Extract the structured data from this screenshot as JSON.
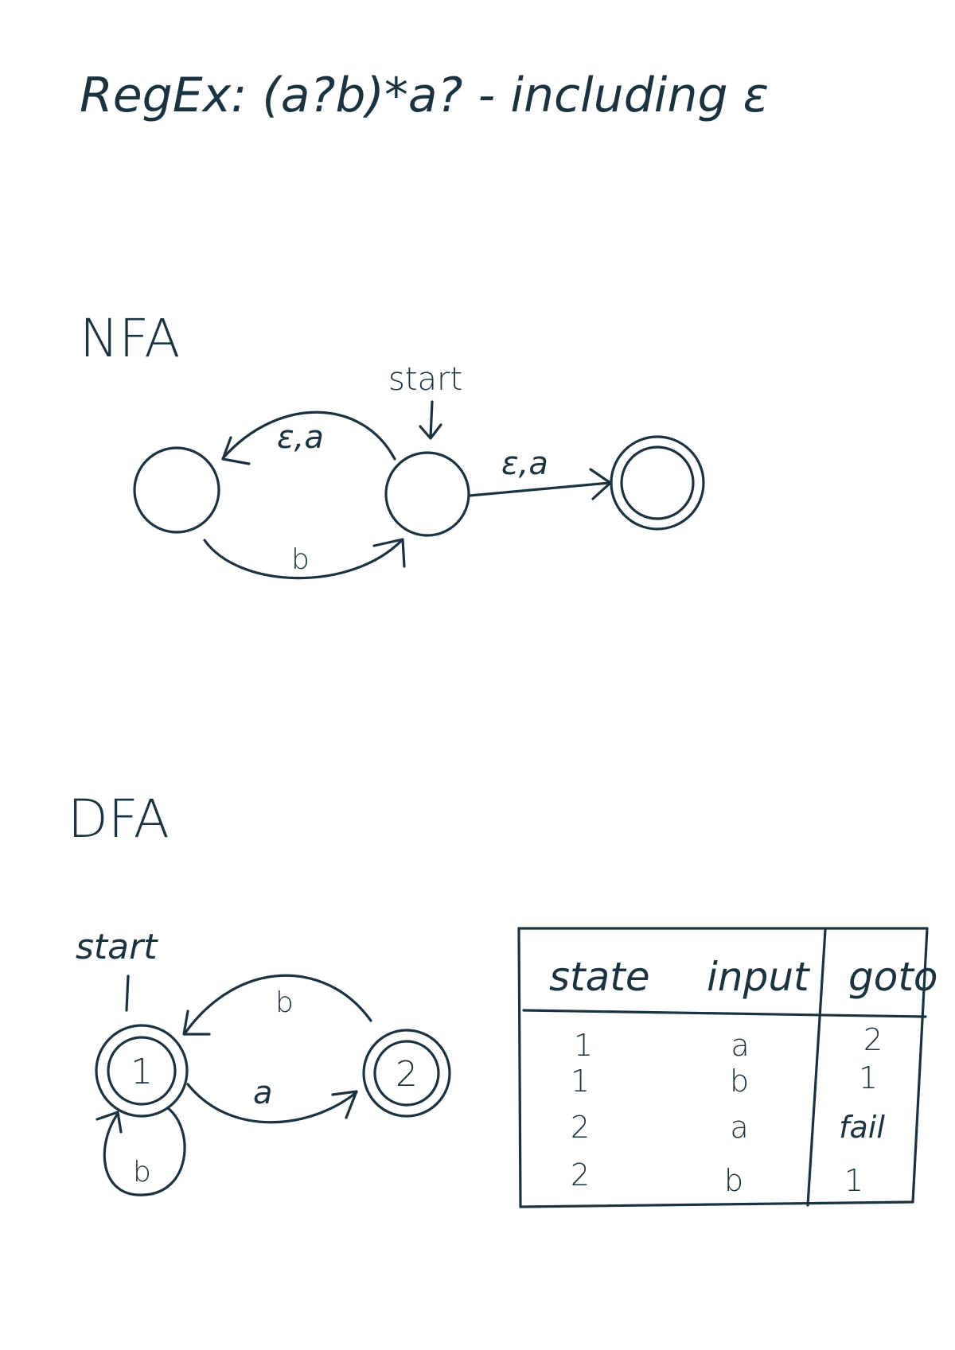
{
  "title": "RegEx: (a?b)*a? - including ε",
  "nfa": {
    "heading": "NFA",
    "start_label": "start",
    "edges": {
      "left_to_start_top": "ε,a",
      "left_to_start_bottom": "b",
      "start_to_final": "ε,a"
    }
  },
  "dfa": {
    "heading": "DFA",
    "start_label": "start",
    "states": [
      "1",
      "2"
    ],
    "edges": {
      "s1_to_s2": "a",
      "s2_to_s1": "b",
      "s1_self": "b"
    }
  },
  "table": {
    "headers": [
      "state",
      "input",
      "goto"
    ],
    "rows": [
      [
        "1",
        "a",
        "2"
      ],
      [
        "1",
        "b",
        "1"
      ],
      [
        "2",
        "a",
        "fail"
      ],
      [
        "2",
        "b",
        "1"
      ]
    ]
  }
}
